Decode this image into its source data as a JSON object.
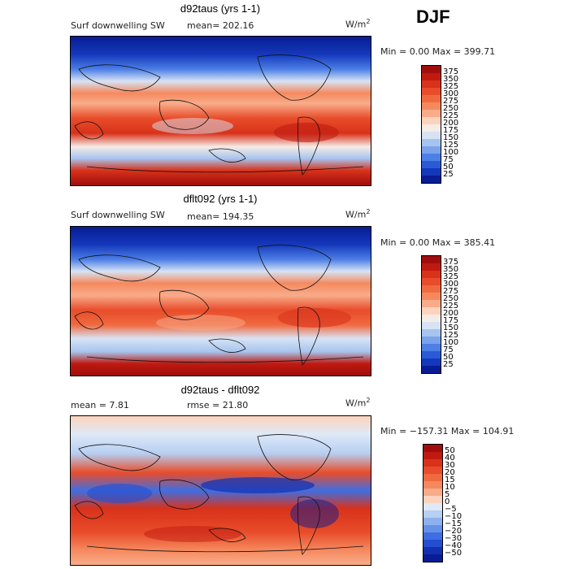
{
  "season": "DJF",
  "chart_data": [
    {
      "type": "heatmap",
      "title": "d92taus (yrs 1-1)",
      "variable_label": "Surf downwelling SW",
      "mean_text": "mean= 202.16",
      "units_base": "W/m",
      "units_exp": "2",
      "minmax_text": "Min =    0.00 Max = 399.71",
      "colorbar_levels": [
        "375",
        "350",
        "325",
        "300",
        "275",
        "250",
        "225",
        "200",
        "175",
        "150",
        "125",
        "100",
        "75",
        "50",
        "25"
      ],
      "colorbar_colors": [
        "#a00d0d",
        "#c01a10",
        "#d8321a",
        "#e84c2a",
        "#f06a40",
        "#f5895e",
        "#f8ac8a",
        "#fcd3bd",
        "#f6ece6",
        "#d7e3f4",
        "#a7c4ee",
        "#7aa3ec",
        "#4d7fe6",
        "#2b5ad6",
        "#1438bb",
        "#081c94"
      ]
    },
    {
      "type": "heatmap",
      "title": "dflt092 (yrs 1-1)",
      "variable_label": "Surf downwelling SW",
      "mean_text": "mean= 194.35",
      "units_base": "W/m",
      "units_exp": "2",
      "minmax_text": "Min =    0.00 Max = 385.41",
      "colorbar_levels": [
        "375",
        "350",
        "325",
        "300",
        "275",
        "250",
        "225",
        "200",
        "175",
        "150",
        "125",
        "100",
        "75",
        "50",
        "25"
      ],
      "colorbar_colors": [
        "#a00d0d",
        "#c01a10",
        "#d8321a",
        "#e84c2a",
        "#f06a40",
        "#f5895e",
        "#f8ac8a",
        "#fcd3bd",
        "#f6ece6",
        "#d7e3f4",
        "#a7c4ee",
        "#7aa3ec",
        "#4d7fe6",
        "#2b5ad6",
        "#1438bb",
        "#081c94"
      ]
    },
    {
      "type": "heatmap",
      "title": "d92taus - dflt092",
      "mean_text": "mean =    7.81",
      "rmse_text": "rmse =  21.80",
      "units_base": "W/m",
      "units_exp": "2",
      "minmax_text": "Min = −157.31 Max = 104.91",
      "colorbar_levels": [
        "50",
        "40",
        "30",
        "20",
        "15",
        "10",
        "5",
        "0",
        "−5",
        "−10",
        "−15",
        "−20",
        "−30",
        "−40",
        "−50"
      ],
      "colorbar_colors": [
        "#a00d0d",
        "#c01a10",
        "#d8321a",
        "#e84c2a",
        "#f06a40",
        "#f5895e",
        "#f8ac8a",
        "#fcd3bd",
        "#dfe9f7",
        "#b6cff2",
        "#8cb1ee",
        "#6691e9",
        "#3f6ee2",
        "#234ed0",
        "#1230b0",
        "#081c94"
      ]
    }
  ]
}
